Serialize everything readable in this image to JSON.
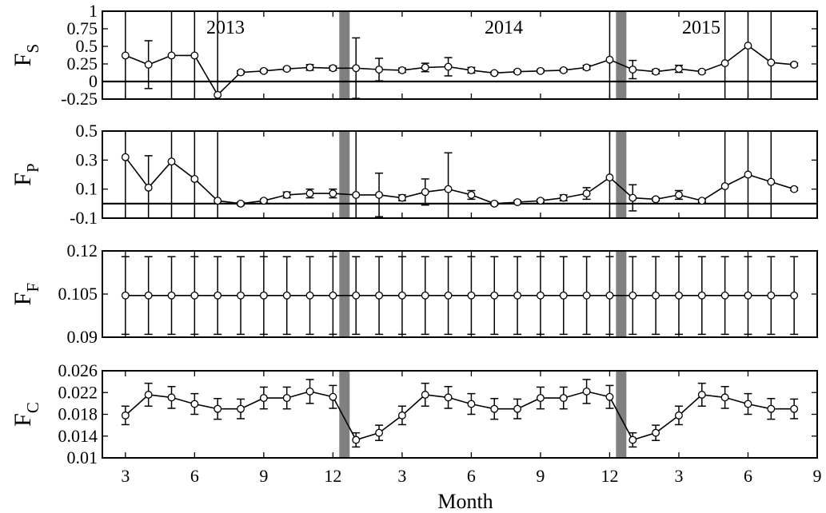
{
  "colors": {
    "line": "#000000",
    "separator": "#808080",
    "background": "#ffffff"
  },
  "chart_data": {
    "type": "line",
    "xlabel": "Month",
    "xtick_labels": [
      "3",
      "6",
      "9",
      "12",
      "3",
      "6",
      "9",
      "12",
      "3",
      "6",
      "9"
    ],
    "year_labels": [
      "2013",
      "2014",
      "2015"
    ],
    "separators_month_index": [
      12.5,
      24.5
    ],
    "x_range": [
      2,
      33
    ],
    "panels": [
      {
        "label_main": "F",
        "label_sub": "S",
        "ylim": [
          -0.25,
          1
        ],
        "yticks": [
          -0.25,
          0,
          0.25,
          0.5,
          0.75,
          1
        ],
        "ytick_labels": [
          "-0.25",
          "0",
          "0.25",
          "0.5",
          "0.75",
          "1"
        ],
        "zero_line": 0,
        "x": [
          3,
          4,
          5,
          6,
          7,
          8,
          9,
          10,
          11,
          12,
          13,
          14,
          15,
          16,
          17,
          18,
          19,
          20,
          21,
          22,
          23,
          24,
          25,
          26,
          27,
          28,
          29,
          30,
          31,
          32
        ],
        "y": [
          0.37,
          0.24,
          0.37,
          0.37,
          -0.19,
          0.13,
          0.15,
          0.18,
          0.2,
          0.19,
          0.19,
          0.17,
          0.16,
          0.2,
          0.21,
          0.16,
          0.12,
          0.14,
          0.15,
          0.16,
          0.2,
          0.31,
          0.17,
          0.14,
          0.18,
          0.14,
          0.26,
          0.51,
          0.27,
          0.24
        ],
        "err": [
          1.5,
          0.34,
          1.5,
          1.5,
          1.5,
          0.02,
          0.02,
          0.02,
          0.04,
          0.03,
          0.43,
          0.16,
          0.03,
          0.06,
          0.13,
          0.04,
          0.02,
          0.02,
          0.02,
          0.02,
          0.03,
          1.5,
          0.13,
          0.03,
          0.05,
          0.02,
          1.5,
          1.5,
          1.5,
          0.02
        ]
      },
      {
        "label_main": "F",
        "label_sub": "P",
        "ylim": [
          -0.1,
          0.5
        ],
        "yticks": [
          -0.1,
          0.1,
          0.3,
          0.5
        ],
        "ytick_labels": [
          "-0.1",
          "0.1",
          "0.3",
          "0.5"
        ],
        "zero_line": 0,
        "x": [
          3,
          4,
          5,
          6,
          7,
          8,
          9,
          10,
          11,
          12,
          13,
          14,
          15,
          16,
          17,
          18,
          19,
          20,
          21,
          22,
          23,
          24,
          25,
          26,
          27,
          28,
          29,
          30,
          31,
          32
        ],
        "y": [
          0.32,
          0.11,
          0.29,
          0.17,
          0.02,
          0.0,
          0.02,
          0.06,
          0.07,
          0.07,
          0.06,
          0.06,
          0.04,
          0.08,
          0.1,
          0.06,
          0.0,
          0.01,
          0.02,
          0.04,
          0.07,
          0.18,
          0.04,
          0.03,
          0.06,
          0.02,
          0.12,
          0.2,
          0.15,
          0.1
        ],
        "err": [
          1.0,
          0.22,
          1.0,
          1.0,
          1.0,
          0.01,
          0.01,
          0.02,
          0.03,
          0.03,
          1.0,
          0.15,
          0.02,
          0.09,
          0.25,
          0.03,
          0.01,
          0.01,
          0.01,
          0.02,
          0.04,
          1.0,
          0.09,
          0.01,
          0.03,
          0.01,
          1.0,
          1.0,
          1.0,
          0.01
        ]
      },
      {
        "label_main": "F",
        "label_sub": "F",
        "ylim": [
          0.09,
          0.12
        ],
        "yticks": [
          0.09,
          0.105,
          0.12
        ],
        "ytick_labels": [
          "0.09",
          "0.105",
          "0.12"
        ],
        "x": [
          3,
          4,
          5,
          6,
          7,
          8,
          9,
          10,
          11,
          12,
          13,
          14,
          15,
          16,
          17,
          18,
          19,
          20,
          21,
          22,
          23,
          24,
          25,
          26,
          27,
          28,
          29,
          30,
          31,
          32
        ],
        "y": [
          0.1045,
          0.1045,
          0.1045,
          0.1045,
          0.1045,
          0.1045,
          0.1045,
          0.1045,
          0.1045,
          0.1045,
          0.1045,
          0.1045,
          0.1045,
          0.1045,
          0.1045,
          0.1045,
          0.1045,
          0.1045,
          0.1045,
          0.1045,
          0.1045,
          0.1045,
          0.1045,
          0.1045,
          0.1045,
          0.1045,
          0.1045,
          0.1045,
          0.1045,
          0.1045
        ],
        "err": [
          0.0135,
          0.0135,
          0.0135,
          0.0135,
          0.0135,
          0.0135,
          0.0135,
          0.0135,
          0.0135,
          0.0135,
          0.0135,
          0.0135,
          0.0135,
          0.0135,
          0.0135,
          0.0135,
          0.0135,
          0.0135,
          0.0135,
          0.0135,
          0.0135,
          0.0135,
          0.0135,
          0.0135,
          0.0135,
          0.0135,
          0.0135,
          0.0135,
          0.0135,
          0.0135
        ]
      },
      {
        "label_main": "F",
        "label_sub": "C",
        "ylim": [
          0.01,
          0.026
        ],
        "yticks": [
          0.01,
          0.014,
          0.018,
          0.022,
          0.026
        ],
        "ytick_labels": [
          "0.01",
          "0.014",
          "0.018",
          "0.022",
          "0.026"
        ],
        "x": [
          3,
          4,
          5,
          6,
          7,
          8,
          9,
          10,
          11,
          12,
          13,
          14,
          15,
          16,
          17,
          18,
          19,
          20,
          21,
          22,
          23,
          24,
          25,
          26,
          27,
          28,
          29,
          30,
          31,
          32
        ],
        "y": [
          0.0178,
          0.0216,
          0.0211,
          0.0199,
          0.019,
          0.019,
          0.021,
          0.021,
          0.0222,
          0.0212,
          0.0133,
          0.0146,
          0.0178,
          0.0216,
          0.0211,
          0.0199,
          0.019,
          0.019,
          0.021,
          0.021,
          0.0222,
          0.0212,
          0.0133,
          0.0146,
          0.0178,
          0.0216,
          0.0211,
          0.0199,
          0.019,
          0.019
        ],
        "err": [
          0.0017,
          0.0021,
          0.002,
          0.0019,
          0.0019,
          0.0018,
          0.002,
          0.002,
          0.0022,
          0.0021,
          0.0013,
          0.0014,
          0.0017,
          0.0021,
          0.002,
          0.0019,
          0.0019,
          0.0018,
          0.002,
          0.002,
          0.0022,
          0.0021,
          0.0013,
          0.0014,
          0.0017,
          0.0021,
          0.002,
          0.0019,
          0.0019,
          0.0018
        ]
      }
    ]
  }
}
